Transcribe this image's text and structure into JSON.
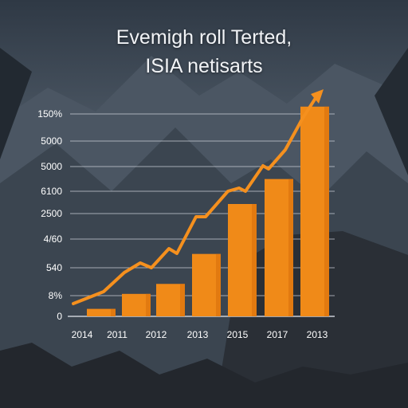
{
  "title_line1": "Evemigh roll Terted,",
  "title_line2": "ISIA netisarts",
  "colors": {
    "bar": "#f08a18",
    "bar_dark": "#d9700c",
    "line": "#f5901e",
    "gridline": "#c9ced6",
    "text": "#ffffff"
  },
  "chart_data": {
    "type": "bar",
    "title": "Evemigh roll Terted, ISIA netisarts",
    "categories": [
      "2014",
      "2011",
      "2012",
      "2013",
      "2015",
      "2017",
      "2013"
    ],
    "values": [
      1.5,
      4.5,
      6.5,
      12.5,
      22.5,
      27.5,
      42
    ],
    "series": [
      {
        "type": "bar",
        "values": [
          1.5,
          4.5,
          6.5,
          12.5,
          22.5,
          27.5,
          42
        ]
      },
      {
        "type": "line",
        "values": [
          2,
          7,
          11,
          16.5,
          22,
          32,
          44
        ]
      }
    ],
    "y_tick_labels": [
      "0",
      "8%",
      "540",
      "4/60",
      "2500",
      "6100",
      "5000",
      "5000",
      "150%"
    ],
    "grid": true,
    "gridline_count": 8,
    "trend_arrow": true
  }
}
